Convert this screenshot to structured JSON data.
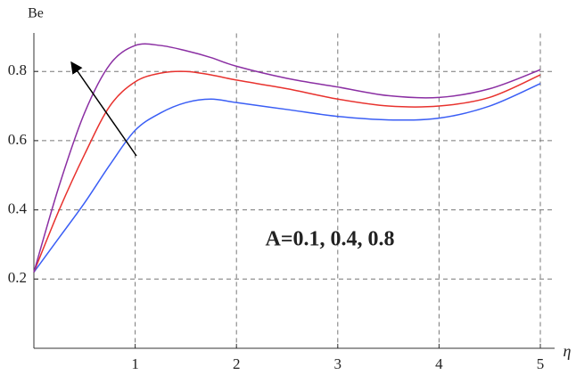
{
  "chart_data": {
    "type": "line",
    "x_label": "η",
    "y_label": "Be",
    "annotation": "A=0.1, 0.4, 0.8",
    "x": [
      0,
      0.25,
      0.5,
      0.75,
      1,
      1.25,
      1.5,
      1.75,
      2,
      2.5,
      3,
      3.5,
      4,
      4.5,
      5
    ],
    "series": [
      {
        "color": "#3a5ef5",
        "values": [
          0.22,
          0.32,
          0.42,
          0.53,
          0.63,
          0.68,
          0.71,
          0.72,
          0.71,
          0.69,
          0.67,
          0.66,
          0.665,
          0.7,
          0.765
        ]
      },
      {
        "color": "#e8322e",
        "values": [
          0.22,
          0.4,
          0.56,
          0.7,
          0.77,
          0.795,
          0.8,
          0.79,
          0.775,
          0.75,
          0.72,
          0.7,
          0.7,
          0.725,
          0.79
        ]
      },
      {
        "color": "#8b2fa3",
        "values": [
          0.22,
          0.47,
          0.68,
          0.82,
          0.875,
          0.875,
          0.86,
          0.84,
          0.815,
          0.78,
          0.755,
          0.73,
          0.725,
          0.75,
          0.805
        ]
      }
    ],
    "xlim": [
      0,
      5.12
    ],
    "ylim": [
      0,
      0.91
    ],
    "xticks": [
      1,
      2,
      3,
      4,
      5
    ],
    "yticks": [
      0.2,
      0.4,
      0.6,
      0.8
    ],
    "grid": true
  }
}
